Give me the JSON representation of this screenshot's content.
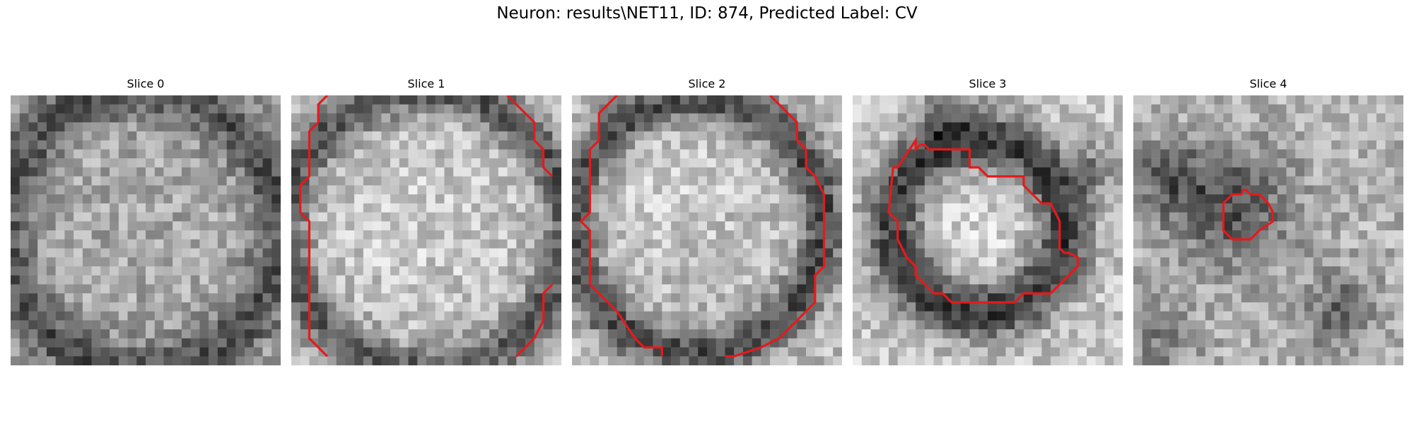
{
  "figure": {
    "title": "Neuron: results\\NET11, ID: 874, Predicted Label: CV",
    "contour_color": "#e41a1c",
    "slices": [
      {
        "label": "Slice 0"
      },
      {
        "label": "Slice 1"
      },
      {
        "label": "Slice 2"
      },
      {
        "label": "Slice 3"
      },
      {
        "label": "Slice 4"
      }
    ]
  }
}
